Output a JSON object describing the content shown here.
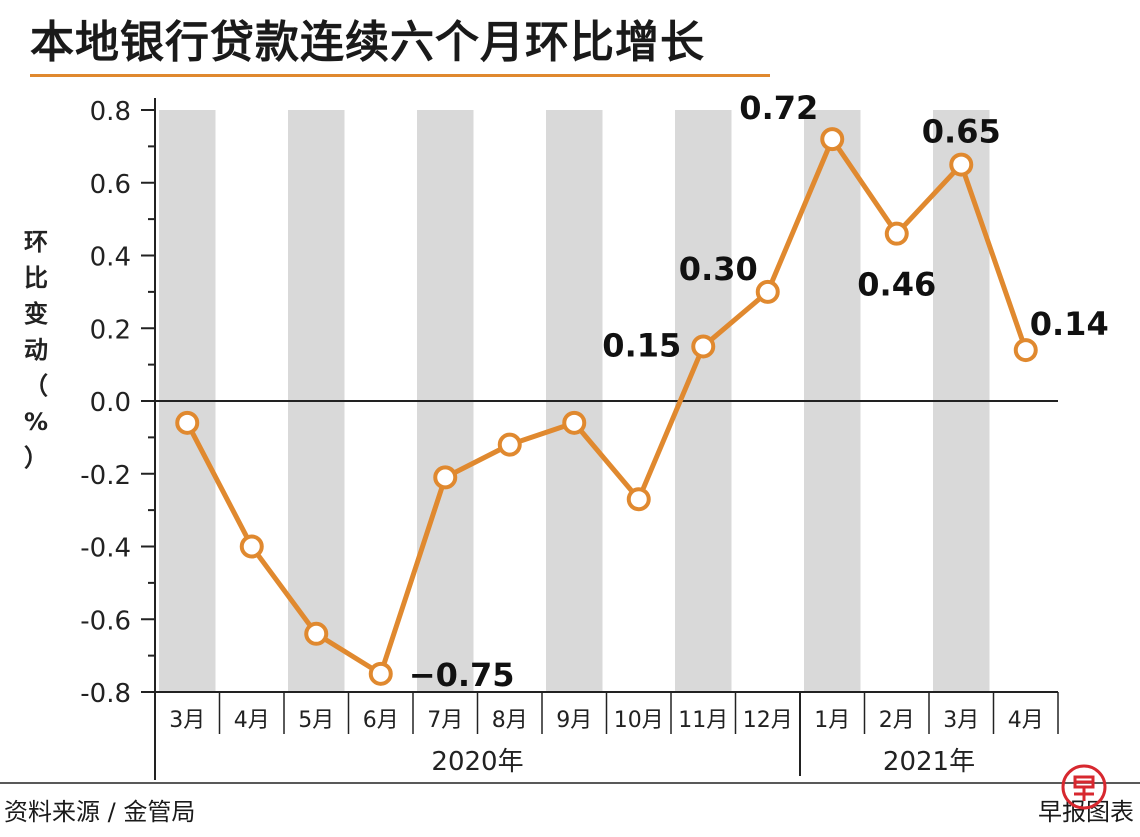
{
  "title": "本地银行贷款连续六个月环比增长",
  "source": "资料来源 / 金管局",
  "credit": "早报图表",
  "colors": {
    "line": "#e0892f",
    "marker_fill": "#ffffff",
    "shade": "#d9d9d9",
    "title_rule": "#e0892f",
    "axis": "#222222",
    "logo": "#d7282f"
  },
  "chart_data": {
    "type": "line",
    "ylabel": "环比变动（%）",
    "ylim": [
      -0.8,
      0.8
    ],
    "yticks": [
      "0.8",
      "0.6",
      "0.4",
      "0.2",
      "0.0",
      "-0.2",
      "-0.4",
      "-0.6",
      "-0.8"
    ],
    "categories": [
      "3月",
      "4月",
      "5月",
      "6月",
      "7月",
      "8月",
      "9月",
      "10月",
      "11月",
      "12月",
      "1月",
      "2月",
      "3月",
      "4月"
    ],
    "year_groups": [
      {
        "label": "2020年",
        "count": 10
      },
      {
        "label": "2021年",
        "count": 4
      }
    ],
    "values": [
      -0.06,
      -0.4,
      -0.64,
      -0.75,
      -0.21,
      -0.12,
      -0.06,
      -0.27,
      0.15,
      0.3,
      0.72,
      0.46,
      0.65,
      0.14
    ],
    "data_labels": [
      {
        "index": 3,
        "text": "−0.75"
      },
      {
        "index": 8,
        "text": "0.15"
      },
      {
        "index": 9,
        "text": "0.30"
      },
      {
        "index": 10,
        "text": "0.72"
      },
      {
        "index": 11,
        "text": "0.46"
      },
      {
        "index": 12,
        "text": "0.65"
      },
      {
        "index": 13,
        "text": "0.14"
      }
    ],
    "shaded_categories": [
      0,
      2,
      4,
      6,
      8,
      10,
      12
    ],
    "grid": false,
    "legend": "none"
  }
}
